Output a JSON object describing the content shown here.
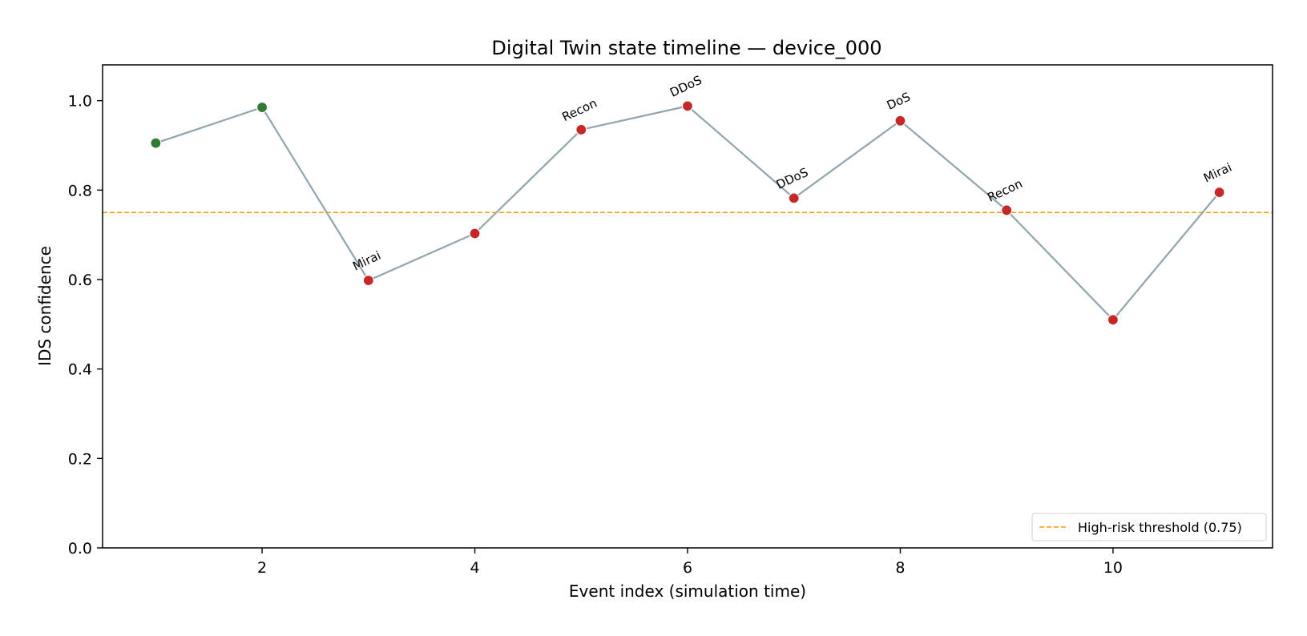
{
  "chart_data": {
    "type": "line",
    "title": "Digital Twin state timeline — device_000",
    "xlabel": "Event index (simulation time)",
    "ylabel": "IDS confidence",
    "xlim": [
      0.5,
      11.5
    ],
    "ylim": [
      0.0,
      1.08
    ],
    "xticks": [
      2,
      4,
      6,
      8,
      10
    ],
    "yticks": [
      "0.0",
      "0.2",
      "0.4",
      "0.6",
      "0.8",
      "1.0"
    ],
    "grid": false,
    "legend_position": "lower-right",
    "line_color": "#90a4ae",
    "points": [
      {
        "x": 1,
        "y": 0.905,
        "label": "",
        "state": "normal"
      },
      {
        "x": 2,
        "y": 0.985,
        "label": "",
        "state": "normal"
      },
      {
        "x": 3,
        "y": 0.598,
        "label": "Mirai",
        "state": "attack"
      },
      {
        "x": 4,
        "y": 0.703,
        "label": "",
        "state": "attack"
      },
      {
        "x": 5,
        "y": 0.935,
        "label": "Recon",
        "state": "attack"
      },
      {
        "x": 6,
        "y": 0.988,
        "label": "DDoS",
        "state": "attack"
      },
      {
        "x": 7,
        "y": 0.782,
        "label": "DDoS",
        "state": "attack"
      },
      {
        "x": 8,
        "y": 0.955,
        "label": "DoS",
        "state": "attack"
      },
      {
        "x": 9,
        "y": 0.755,
        "label": "Recon",
        "state": "attack"
      },
      {
        "x": 10,
        "y": 0.51,
        "label": "",
        "state": "attack"
      },
      {
        "x": 11,
        "y": 0.795,
        "label": "Mirai",
        "state": "attack"
      }
    ],
    "state_colors": {
      "normal": "#2e7d32",
      "attack": "#c62828"
    },
    "threshold": {
      "value": 0.75,
      "label": "High-risk threshold (0.75)",
      "color": "#ff9800"
    }
  }
}
